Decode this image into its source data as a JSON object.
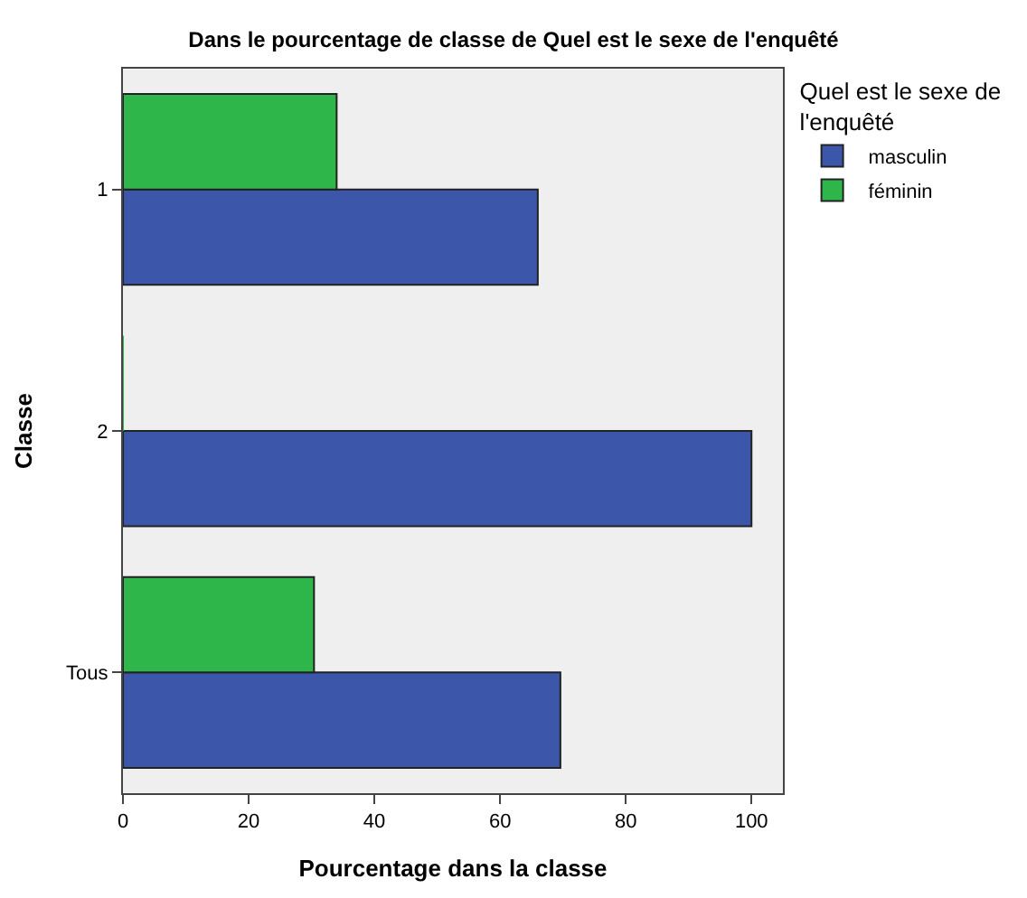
{
  "chart_data": {
    "type": "bar",
    "orientation": "horizontal",
    "title": "Dans le pourcentage de classe de Quel est le sexe de l'enquêté",
    "xlabel": "Pourcentage dans la classe",
    "ylabel": "Classe",
    "legend_title": "Quel est le sexe de l'enquêté",
    "legend": "top right",
    "grid": false,
    "categories": [
      "1",
      "2",
      "Tous"
    ],
    "series": [
      {
        "name": "masculin",
        "color": "#3c56a9",
        "values": [
          66,
          100,
          69.6
        ]
      },
      {
        "name": "féminin",
        "color": "#2fb64a",
        "values": [
          34,
          0,
          30.4
        ]
      }
    ],
    "xlim": [
      0,
      105
    ],
    "xticks": [
      0,
      20,
      40,
      60,
      80,
      100
    ]
  }
}
